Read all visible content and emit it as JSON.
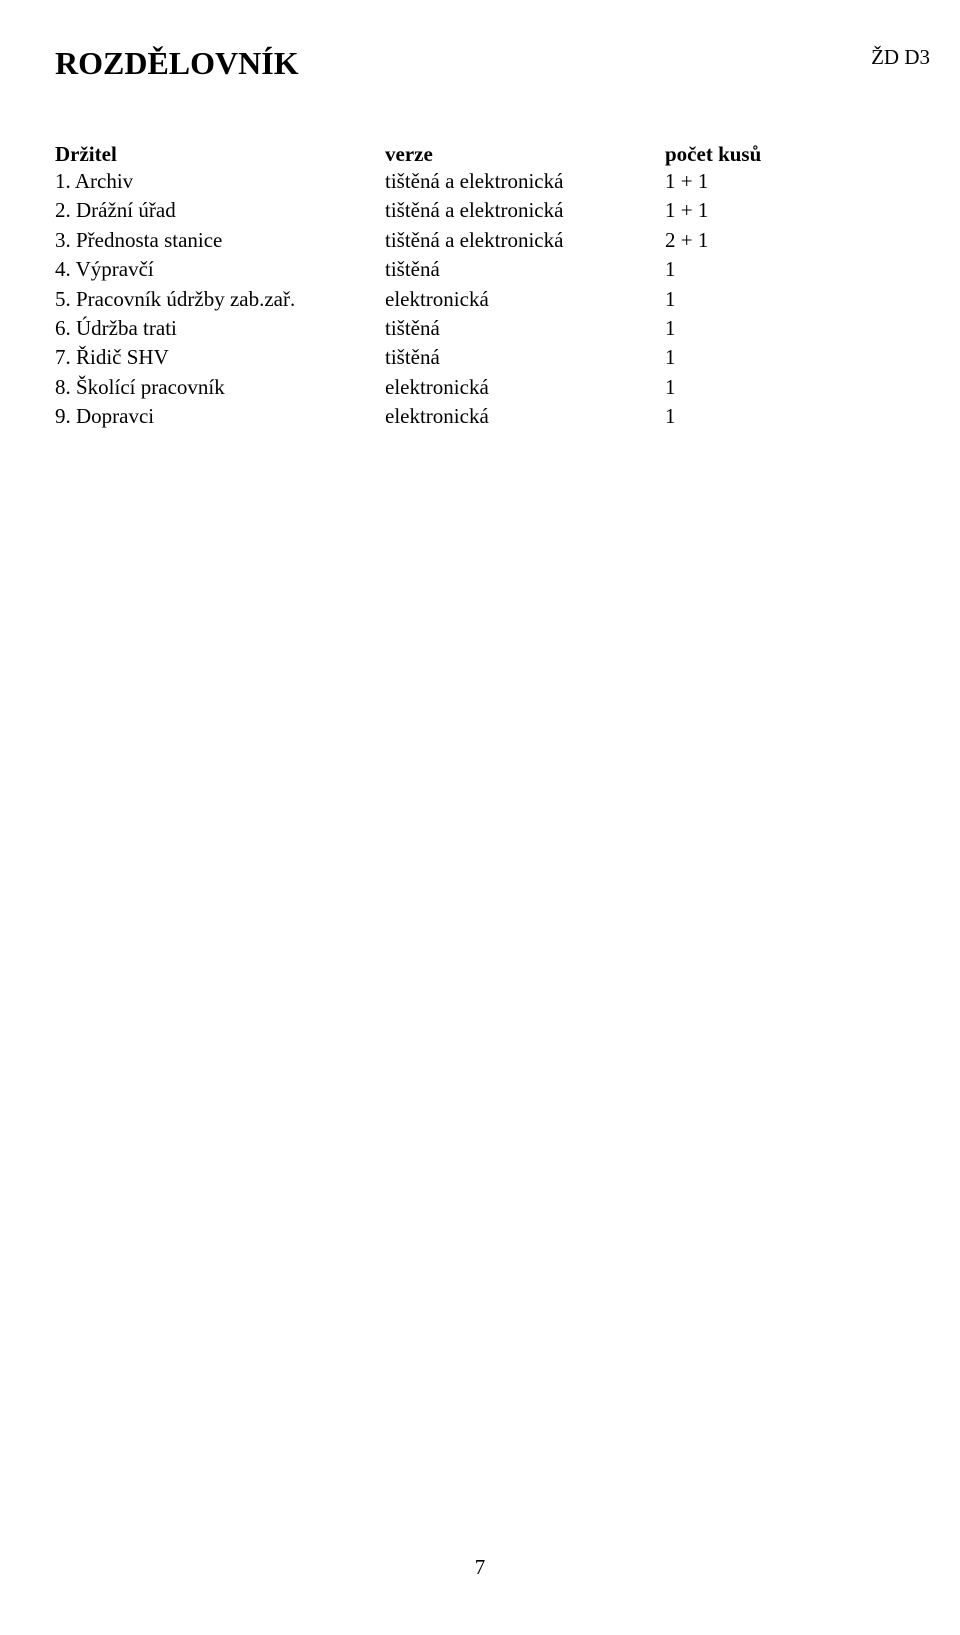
{
  "header_corner": "ŽD D3",
  "page_title": "ROZDĚLOVNÍK",
  "columns": {
    "holder": "Držitel",
    "version": "verze",
    "count": "počet kusů"
  },
  "rows": [
    {
      "holder": "1.  Archiv",
      "version": "tištěná a elektronická",
      "count": "1 + 1"
    },
    {
      "holder": "2.  Drážní úřad",
      "version": "tištěná a elektronická",
      "count": "1 + 1"
    },
    {
      "holder": "3.  Přednosta stanice",
      "version": "tištěná a elektronická",
      "count": "2 + 1"
    },
    {
      "holder": "4.  Výpravčí",
      "version": "tištěná",
      "count": "1"
    },
    {
      "holder": "5.  Pracovník údržby zab.zař.",
      "version": "elektronická",
      "count": "1"
    },
    {
      "holder": "6.  Údržba trati",
      "version": "tištěná",
      "count": "1"
    },
    {
      "holder": "7.  Řidič SHV",
      "version": "tištěná",
      "count": "1"
    },
    {
      "holder": "8.  Školící pracovník",
      "version": "elektronická",
      "count": "1"
    },
    {
      "holder": "9.  Dopravci",
      "version": "elektronická",
      "count": "1"
    }
  ],
  "page_number": "7"
}
